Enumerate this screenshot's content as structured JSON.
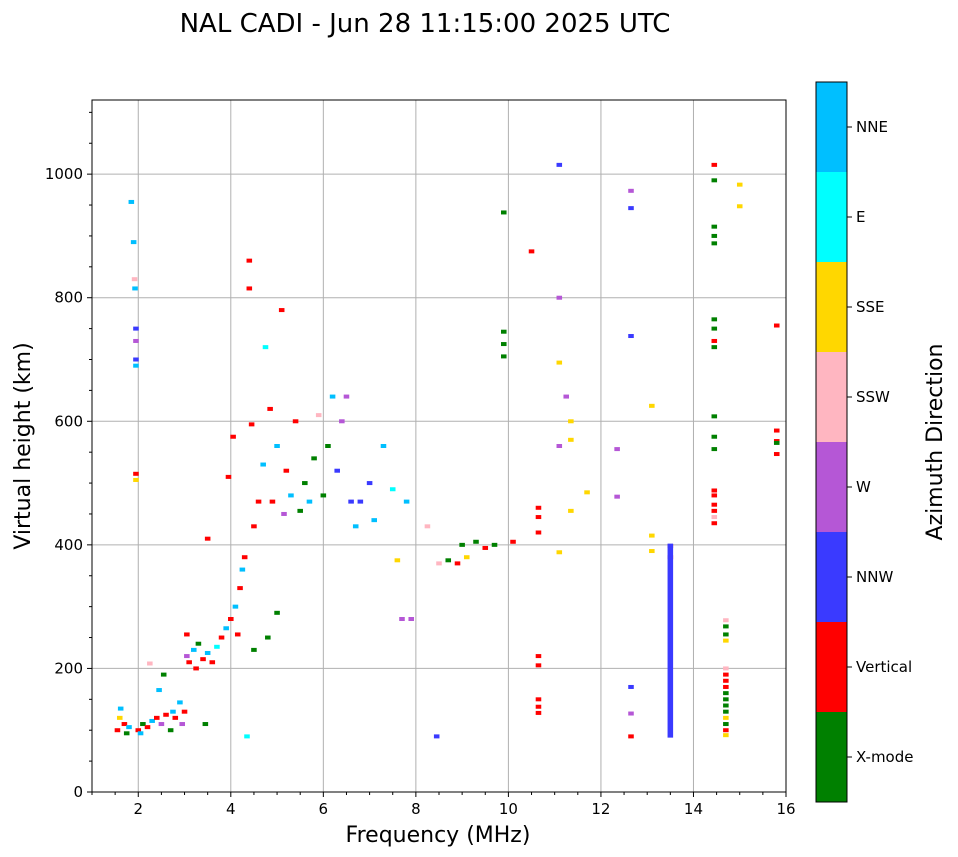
{
  "chart_data": {
    "type": "scatter",
    "title": "NAL CADI - Jun 28 11:15:00 2025 UTC",
    "xlabel": "Frequency (MHz)",
    "ylabel": "Virtual height (km)",
    "xlim": [
      1,
      16
    ],
    "ylim": [
      0,
      1120
    ],
    "xticks": [
      2,
      4,
      6,
      8,
      10,
      12,
      14,
      16
    ],
    "yticks": [
      0,
      200,
      400,
      600,
      800,
      1000
    ],
    "grid": true,
    "colorbar": {
      "label": "Azimuth Direction",
      "categories": [
        {
          "name": "X-mode",
          "color": "#008000"
        },
        {
          "name": "Vertical",
          "color": "#ff0000"
        },
        {
          "name": "NNW",
          "color": "#3a3aff"
        },
        {
          "name": "W",
          "color": "#b557d6"
        },
        {
          "name": "SSW",
          "color": "#ffb6c1"
        },
        {
          "name": "SSE",
          "color": "#ffd700"
        },
        {
          "name": "E",
          "color": "#00ffff"
        },
        {
          "name": "NNE",
          "color": "#00bfff"
        }
      ]
    },
    "echoes": [
      {
        "f": 1.55,
        "h": 100,
        "c": "Vertical"
      },
      {
        "f": 1.6,
        "h": 120,
        "c": "SSE"
      },
      {
        "f": 1.62,
        "h": 135,
        "c": "NNE"
      },
      {
        "f": 1.7,
        "h": 110,
        "c": "Vertical"
      },
      {
        "f": 1.75,
        "h": 95,
        "c": "X-mode"
      },
      {
        "f": 1.8,
        "h": 105,
        "c": "NNE"
      },
      {
        "f": 1.85,
        "h": 955,
        "c": "NNE"
      },
      {
        "f": 1.9,
        "h": 890,
        "c": "NNE"
      },
      {
        "f": 1.92,
        "h": 830,
        "c": "SSW"
      },
      {
        "f": 1.93,
        "h": 815,
        "c": "NNE"
      },
      {
        "f": 1.95,
        "h": 750,
        "c": "NNW"
      },
      {
        "f": 1.95,
        "h": 730,
        "c": "W"
      },
      {
        "f": 1.95,
        "h": 700,
        "c": "NNW"
      },
      {
        "f": 1.95,
        "h": 690,
        "c": "NNE"
      },
      {
        "f": 1.95,
        "h": 515,
        "c": "Vertical"
      },
      {
        "f": 1.95,
        "h": 505,
        "c": "SSE"
      },
      {
        "f": 2.0,
        "h": 100,
        "c": "Vertical"
      },
      {
        "f": 2.05,
        "h": 95,
        "c": "NNE"
      },
      {
        "f": 2.1,
        "h": 110,
        "c": "X-mode"
      },
      {
        "f": 2.2,
        "h": 105,
        "c": "Vertical"
      },
      {
        "f": 2.25,
        "h": 208,
        "c": "SSW"
      },
      {
        "f": 2.3,
        "h": 115,
        "c": "NNE"
      },
      {
        "f": 2.4,
        "h": 120,
        "c": "Vertical"
      },
      {
        "f": 2.45,
        "h": 165,
        "c": "NNE"
      },
      {
        "f": 2.5,
        "h": 110,
        "c": "W"
      },
      {
        "f": 2.55,
        "h": 190,
        "c": "X-mode"
      },
      {
        "f": 2.6,
        "h": 125,
        "c": "Vertical"
      },
      {
        "f": 2.7,
        "h": 100,
        "c": "X-mode"
      },
      {
        "f": 2.75,
        "h": 130,
        "c": "NNE"
      },
      {
        "f": 2.8,
        "h": 120,
        "c": "Vertical"
      },
      {
        "f": 2.9,
        "h": 145,
        "c": "NNE"
      },
      {
        "f": 2.95,
        "h": 110,
        "c": "W"
      },
      {
        "f": 3.0,
        "h": 130,
        "c": "Vertical"
      },
      {
        "f": 3.05,
        "h": 255,
        "c": "Vertical"
      },
      {
        "f": 3.05,
        "h": 220,
        "c": "W"
      },
      {
        "f": 3.1,
        "h": 210,
        "c": "Vertical"
      },
      {
        "f": 3.2,
        "h": 230,
        "c": "NNE"
      },
      {
        "f": 3.25,
        "h": 200,
        "c": "Vertical"
      },
      {
        "f": 3.3,
        "h": 240,
        "c": "X-mode"
      },
      {
        "f": 3.4,
        "h": 215,
        "c": "Vertical"
      },
      {
        "f": 3.45,
        "h": 110,
        "c": "X-mode"
      },
      {
        "f": 3.5,
        "h": 225,
        "c": "NNE"
      },
      {
        "f": 3.5,
        "h": 410,
        "c": "Vertical"
      },
      {
        "f": 3.6,
        "h": 210,
        "c": "Vertical"
      },
      {
        "f": 3.7,
        "h": 235,
        "c": "E"
      },
      {
        "f": 3.8,
        "h": 250,
        "c": "Vertical"
      },
      {
        "f": 3.9,
        "h": 265,
        "c": "NNE"
      },
      {
        "f": 3.95,
        "h": 510,
        "c": "Vertical"
      },
      {
        "f": 4.0,
        "h": 280,
        "c": "Vertical"
      },
      {
        "f": 4.05,
        "h": 575,
        "c": "Vertical"
      },
      {
        "f": 4.1,
        "h": 300,
        "c": "NNE"
      },
      {
        "f": 4.15,
        "h": 255,
        "c": "Vertical"
      },
      {
        "f": 4.2,
        "h": 330,
        "c": "Vertical"
      },
      {
        "f": 4.25,
        "h": 360,
        "c": "NNE"
      },
      {
        "f": 4.3,
        "h": 380,
        "c": "Vertical"
      },
      {
        "f": 4.35,
        "h": 90,
        "c": "E"
      },
      {
        "f": 4.4,
        "h": 860,
        "c": "Vertical"
      },
      {
        "f": 4.4,
        "h": 815,
        "c": "Vertical"
      },
      {
        "f": 4.45,
        "h": 595,
        "c": "Vertical"
      },
      {
        "f": 4.5,
        "h": 230,
        "c": "X-mode"
      },
      {
        "f": 4.5,
        "h": 430,
        "c": "Vertical"
      },
      {
        "f": 4.6,
        "h": 470,
        "c": "Vertical"
      },
      {
        "f": 4.7,
        "h": 530,
        "c": "NNE"
      },
      {
        "f": 4.75,
        "h": 720,
        "c": "E"
      },
      {
        "f": 4.8,
        "h": 250,
        "c": "X-mode"
      },
      {
        "f": 4.85,
        "h": 620,
        "c": "Vertical"
      },
      {
        "f": 4.9,
        "h": 470,
        "c": "Vertical"
      },
      {
        "f": 5.0,
        "h": 290,
        "c": "X-mode"
      },
      {
        "f": 5.0,
        "h": 560,
        "c": "NNE"
      },
      {
        "f": 5.1,
        "h": 780,
        "c": "Vertical"
      },
      {
        "f": 5.15,
        "h": 450,
        "c": "W"
      },
      {
        "f": 5.2,
        "h": 520,
        "c": "Vertical"
      },
      {
        "f": 5.3,
        "h": 480,
        "c": "NNE"
      },
      {
        "f": 5.4,
        "h": 600,
        "c": "Vertical"
      },
      {
        "f": 5.5,
        "h": 455,
        "c": "X-mode"
      },
      {
        "f": 5.6,
        "h": 500,
        "c": "X-mode"
      },
      {
        "f": 5.7,
        "h": 470,
        "c": "NNE"
      },
      {
        "f": 5.8,
        "h": 540,
        "c": "X-mode"
      },
      {
        "f": 5.9,
        "h": 610,
        "c": "SSW"
      },
      {
        "f": 6.0,
        "h": 480,
        "c": "X-mode"
      },
      {
        "f": 6.1,
        "h": 560,
        "c": "X-mode"
      },
      {
        "f": 6.2,
        "h": 640,
        "c": "NNE"
      },
      {
        "f": 6.3,
        "h": 520,
        "c": "NNW"
      },
      {
        "f": 6.4,
        "h": 600,
        "c": "W"
      },
      {
        "f": 6.5,
        "h": 640,
        "c": "W"
      },
      {
        "f": 6.6,
        "h": 470,
        "c": "NNW"
      },
      {
        "f": 6.7,
        "h": 430,
        "c": "NNE"
      },
      {
        "f": 6.8,
        "h": 470,
        "c": "NNW"
      },
      {
        "f": 7.0,
        "h": 500,
        "c": "NNW"
      },
      {
        "f": 7.1,
        "h": 440,
        "c": "NNE"
      },
      {
        "f": 7.3,
        "h": 560,
        "c": "NNE"
      },
      {
        "f": 7.5,
        "h": 490,
        "c": "E"
      },
      {
        "f": 7.6,
        "h": 375,
        "c": "SSE"
      },
      {
        "f": 7.8,
        "h": 470,
        "c": "NNE"
      },
      {
        "f": 7.7,
        "h": 280,
        "c": "W"
      },
      {
        "f": 7.9,
        "h": 280,
        "c": "W"
      },
      {
        "f": 8.25,
        "h": 430,
        "c": "SSW"
      },
      {
        "f": 8.45,
        "h": 90,
        "c": "NNW"
      },
      {
        "f": 8.5,
        "h": 370,
        "c": "SSW"
      },
      {
        "f": 8.7,
        "h": 375,
        "c": "X-mode"
      },
      {
        "f": 8.9,
        "h": 370,
        "c": "Vertical"
      },
      {
        "f": 9.0,
        "h": 400,
        "c": "X-mode"
      },
      {
        "f": 9.1,
        "h": 380,
        "c": "SSE"
      },
      {
        "f": 9.3,
        "h": 405,
        "c": "X-mode"
      },
      {
        "f": 9.5,
        "h": 395,
        "c": "Vertical"
      },
      {
        "f": 9.7,
        "h": 400,
        "c": "X-mode"
      },
      {
        "f": 9.9,
        "h": 938,
        "c": "X-mode"
      },
      {
        "f": 9.9,
        "h": 745,
        "c": "X-mode"
      },
      {
        "f": 9.9,
        "h": 725,
        "c": "X-mode"
      },
      {
        "f": 9.9,
        "h": 705,
        "c": "X-mode"
      },
      {
        "f": 10.1,
        "h": 405,
        "c": "Vertical"
      },
      {
        "f": 10.5,
        "h": 875,
        "c": "Vertical"
      },
      {
        "f": 10.65,
        "h": 460,
        "c": "Vertical"
      },
      {
        "f": 10.65,
        "h": 445,
        "c": "Vertical"
      },
      {
        "f": 10.65,
        "h": 420,
        "c": "Vertical"
      },
      {
        "f": 10.65,
        "h": 220,
        "c": "Vertical"
      },
      {
        "f": 10.65,
        "h": 205,
        "c": "Vertical"
      },
      {
        "f": 10.65,
        "h": 150,
        "c": "Vertical"
      },
      {
        "f": 10.65,
        "h": 138,
        "c": "Vertical"
      },
      {
        "f": 10.65,
        "h": 128,
        "c": "Vertical"
      },
      {
        "f": 11.1,
        "h": 1015,
        "c": "NNW"
      },
      {
        "f": 11.1,
        "h": 800,
        "c": "W"
      },
      {
        "f": 11.1,
        "h": 695,
        "c": "SSE"
      },
      {
        "f": 11.1,
        "h": 560,
        "c": "W"
      },
      {
        "f": 11.1,
        "h": 388,
        "c": "SSE"
      },
      {
        "f": 11.25,
        "h": 640,
        "c": "W"
      },
      {
        "f": 11.35,
        "h": 600,
        "c": "SSE"
      },
      {
        "f": 11.35,
        "h": 570,
        "c": "SSE"
      },
      {
        "f": 11.35,
        "h": 455,
        "c": "SSE"
      },
      {
        "f": 11.7,
        "h": 485,
        "c": "SSE"
      },
      {
        "f": 12.35,
        "h": 555,
        "c": "W"
      },
      {
        "f": 12.35,
        "h": 478,
        "c": "W"
      },
      {
        "f": 12.65,
        "h": 973,
        "c": "W"
      },
      {
        "f": 12.65,
        "h": 945,
        "c": "NNW"
      },
      {
        "f": 12.65,
        "h": 738,
        "c": "NNW"
      },
      {
        "f": 12.65,
        "h": 170,
        "c": "NNW"
      },
      {
        "f": 12.65,
        "h": 127,
        "c": "W"
      },
      {
        "f": 12.65,
        "h": 90,
        "c": "Vertical"
      },
      {
        "f": 13.1,
        "h": 625,
        "c": "SSE"
      },
      {
        "f": 13.1,
        "h": 415,
        "c": "SSE"
      },
      {
        "f": 13.1,
        "h": 390,
        "c": "SSE"
      },
      {
        "f": 13.5,
        "h": 398,
        "c": "Vertical"
      },
      {
        "f": 13.5,
        "h": 380,
        "c": "Vertical"
      },
      {
        "f": 14.45,
        "h": 1015,
        "c": "Vertical"
      },
      {
        "f": 14.45,
        "h": 990,
        "c": "X-mode"
      },
      {
        "f": 14.45,
        "h": 915,
        "c": "X-mode"
      },
      {
        "f": 14.45,
        "h": 900,
        "c": "X-mode"
      },
      {
        "f": 14.45,
        "h": 888,
        "c": "X-mode"
      },
      {
        "f": 14.45,
        "h": 765,
        "c": "X-mode"
      },
      {
        "f": 14.45,
        "h": 750,
        "c": "X-mode"
      },
      {
        "f": 14.45,
        "h": 730,
        "c": "Vertical"
      },
      {
        "f": 14.45,
        "h": 720,
        "c": "X-mode"
      },
      {
        "f": 14.45,
        "h": 608,
        "c": "X-mode"
      },
      {
        "f": 14.45,
        "h": 575,
        "c": "X-mode"
      },
      {
        "f": 14.45,
        "h": 555,
        "c": "X-mode"
      },
      {
        "f": 14.45,
        "h": 488,
        "c": "Vertical"
      },
      {
        "f": 14.45,
        "h": 480,
        "c": "Vertical"
      },
      {
        "f": 14.45,
        "h": 465,
        "c": "Vertical"
      },
      {
        "f": 14.45,
        "h": 455,
        "c": "Vertical"
      },
      {
        "f": 14.45,
        "h": 445,
        "c": "SSW"
      },
      {
        "f": 14.45,
        "h": 435,
        "c": "Vertical"
      },
      {
        "f": 14.7,
        "h": 278,
        "c": "SSW"
      },
      {
        "f": 14.7,
        "h": 268,
        "c": "X-mode"
      },
      {
        "f": 14.7,
        "h": 255,
        "c": "X-mode"
      },
      {
        "f": 14.7,
        "h": 245,
        "c": "SSE"
      },
      {
        "f": 14.7,
        "h": 200,
        "c": "SSW"
      },
      {
        "f": 14.7,
        "h": 190,
        "c": "Vertical"
      },
      {
        "f": 14.7,
        "h": 180,
        "c": "Vertical"
      },
      {
        "f": 14.7,
        "h": 170,
        "c": "Vertical"
      },
      {
        "f": 14.7,
        "h": 160,
        "c": "X-mode"
      },
      {
        "f": 14.7,
        "h": 150,
        "c": "X-mode"
      },
      {
        "f": 14.7,
        "h": 140,
        "c": "X-mode"
      },
      {
        "f": 14.7,
        "h": 130,
        "c": "X-mode"
      },
      {
        "f": 14.7,
        "h": 120,
        "c": "SSE"
      },
      {
        "f": 14.7,
        "h": 110,
        "c": "X-mode"
      },
      {
        "f": 14.7,
        "h": 100,
        "c": "Vertical"
      },
      {
        "f": 14.7,
        "h": 92,
        "c": "SSE"
      },
      {
        "f": 15.0,
        "h": 983,
        "c": "SSE"
      },
      {
        "f": 15.0,
        "h": 948,
        "c": "SSE"
      },
      {
        "f": 15.8,
        "h": 755,
        "c": "Vertical"
      },
      {
        "f": 15.8,
        "h": 585,
        "c": "Vertical"
      },
      {
        "f": 15.8,
        "h": 568,
        "c": "Vertical"
      },
      {
        "f": 15.8,
        "h": 565,
        "c": "X-mode"
      },
      {
        "f": 15.8,
        "h": 547,
        "c": "Vertical"
      }
    ],
    "columns": [
      {
        "f": 13.5,
        "h_from": 88,
        "h_to": 402,
        "c": "NNW"
      }
    ]
  }
}
